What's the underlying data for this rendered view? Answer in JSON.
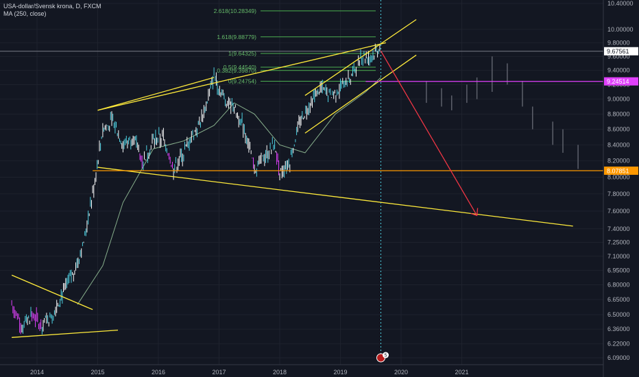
{
  "chart_data": {
    "type": "candlestick",
    "symbol": "USA-dollar/Svensk krona, D, FXCM",
    "indicator": "MA (250, close)",
    "x_ticks": [
      "2014",
      "2015",
      "2016",
      "2017",
      "2018",
      "2019",
      "2020",
      "2021"
    ],
    "y_ticks": [
      "10.40000",
      "10.00000",
      "9.80000",
      "9.60000",
      "9.40000",
      "9.20000",
      "9.00000",
      "8.80000",
      "8.60000",
      "8.40000",
      "8.20000",
      "8.00000",
      "7.80000",
      "7.60000",
      "7.40000",
      "7.25000",
      "7.10000",
      "6.95000",
      "6.80000",
      "6.65000",
      "6.50000",
      "6.36000",
      "6.22000",
      "6.09000"
    ],
    "y_scale": "log",
    "ylim": [
      6.05,
      10.45
    ],
    "price_tags": [
      {
        "value": "9.67561",
        "kind": "current",
        "color": "#ffffff"
      },
      {
        "value": "9.24514",
        "kind": "level",
        "color": "#e040fb"
      },
      {
        "value": "8.07851",
        "kind": "level",
        "color": "#ff9800"
      }
    ],
    "fibonacci": [
      {
        "label": "2.618(10.28349)",
        "value": 10.28349
      },
      {
        "label": "1.618(9.88779)",
        "value": 9.88779
      },
      {
        "label": "1(9.64325)",
        "value": 9.64325
      },
      {
        "label": "0.5(9.44540)",
        "value": 9.4454
      },
      {
        "label": "0.382(9.39870)",
        "value": 9.3987
      },
      {
        "label": "0(9.24754)",
        "value": 9.24754
      }
    ],
    "price_path": [
      [
        "2013-08",
        6.6
      ],
      [
        "2013-10",
        6.4
      ],
      [
        "2013-12",
        6.5
      ],
      [
        "2014-02",
        6.4
      ],
      [
        "2014-04",
        6.5
      ],
      [
        "2014-06",
        6.7
      ],
      [
        "2014-08",
        6.9
      ],
      [
        "2014-10",
        7.2
      ],
      [
        "2014-12",
        7.8
      ],
      [
        "2015-02",
        8.6
      ],
      [
        "2015-04",
        8.7
      ],
      [
        "2015-06",
        8.4
      ],
      [
        "2015-08",
        8.5
      ],
      [
        "2015-10",
        8.2
      ],
      [
        "2015-12",
        8.45
      ],
      [
        "2016-02",
        8.5
      ],
      [
        "2016-04",
        8.1
      ],
      [
        "2016-06",
        8.3
      ],
      [
        "2016-08",
        8.55
      ],
      [
        "2016-10",
        8.8
      ],
      [
        "2016-12",
        9.35
      ],
      [
        "2017-02",
        9.0
      ],
      [
        "2017-04",
        8.9
      ],
      [
        "2017-06",
        8.6
      ],
      [
        "2017-08",
        8.1
      ],
      [
        "2017-10",
        8.25
      ],
      [
        "2017-12",
        8.4
      ],
      [
        "2018-01",
        8.05
      ],
      [
        "2018-03",
        8.2
      ],
      [
        "2018-05",
        8.7
      ],
      [
        "2018-07",
        8.95
      ],
      [
        "2018-09",
        9.15
      ],
      [
        "2018-11",
        9.05
      ],
      [
        "2019-01",
        9.15
      ],
      [
        "2019-03",
        9.3
      ],
      [
        "2019-05",
        9.6
      ],
      [
        "2019-07",
        9.6
      ],
      [
        "2019-09",
        9.75
      ]
    ],
    "ma_path": [
      [
        "2014-09",
        6.6
      ],
      [
        "2015-02",
        7.0
      ],
      [
        "2015-06",
        7.7
      ],
      [
        "2015-12",
        8.35
      ],
      [
        "2016-06",
        8.45
      ],
      [
        "2016-12",
        8.65
      ],
      [
        "2017-04",
        8.95
      ],
      [
        "2017-08",
        8.8
      ],
      [
        "2018-01",
        8.4
      ],
      [
        "2018-06",
        8.3
      ],
      [
        "2018-12",
        8.8
      ],
      [
        "2019-06",
        9.1
      ],
      [
        "2019-09",
        9.3
      ]
    ],
    "projection_ticks": [
      [
        "2020-06",
        8.95,
        9.25
      ],
      [
        "2020-09",
        8.9,
        9.15
      ],
      [
        "2020-11",
        8.85,
        9.05
      ],
      [
        "2021-02",
        8.95,
        9.2
      ],
      [
        "2021-04",
        9.0,
        9.3
      ],
      [
        "2021-07",
        9.1,
        9.6
      ],
      [
        "2021-10",
        9.2,
        9.5
      ],
      [
        "2022-01",
        8.9,
        9.25
      ],
      [
        "2022-03",
        8.6,
        8.9
      ],
      [
        "2022-07",
        8.4,
        8.7
      ],
      [
        "2022-09",
        8.3,
        8.6
      ],
      [
        "2022-12",
        8.1,
        8.4
      ]
    ],
    "trend_lines": [
      {
        "color": "#ffeb3b",
        "points": [
          [
            "2013-08",
            6.9
          ],
          [
            "2014-12",
            6.55
          ]
        ]
      },
      {
        "color": "#ffeb3b",
        "points": [
          [
            "2013-08",
            6.28
          ],
          [
            "2015-05",
            6.35
          ]
        ]
      },
      {
        "color": "#ffeb3b",
        "points": [
          [
            "2015-01",
            8.85
          ],
          [
            "2016-12",
            9.3
          ]
        ]
      },
      {
        "color": "#ffeb3b",
        "points": [
          [
            "2015-01",
            8.12
          ],
          [
            "2022-11",
            7.43
          ]
        ]
      },
      {
        "color": "#ffeb3b",
        "points": [
          [
            "2015-01",
            8.85
          ],
          [
            "2019-10",
            9.8
          ]
        ]
      },
      {
        "color": "#ffeb3b",
        "points": [
          [
            "2018-06",
            9.05
          ],
          [
            "2020-04",
            10.15
          ]
        ]
      },
      {
        "color": "#ffeb3b",
        "points": [
          [
            "2018-06",
            8.55
          ],
          [
            "2020-04",
            9.62
          ]
        ]
      }
    ],
    "horizontal_lines": [
      {
        "color": "#ff9800",
        "value": 8.07851,
        "from": "2014-12"
      },
      {
        "color": "#e040fb",
        "value": 9.24514,
        "from": "2019-06"
      }
    ],
    "forecast_arrow": {
      "color": "#f23645",
      "from": [
        "2019-09",
        9.68
      ],
      "to": [
        "2021-04",
        7.55
      ]
    },
    "marker_label": "5"
  }
}
